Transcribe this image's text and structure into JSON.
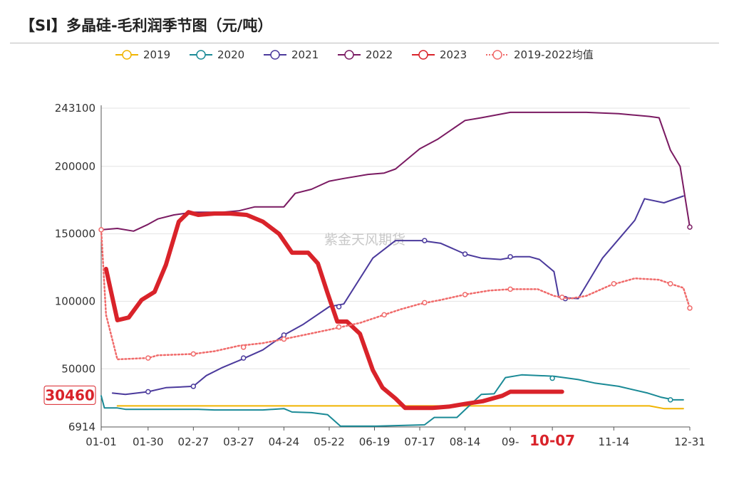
{
  "header": {
    "title": "【SI】多晶硅-毛利润季节图（元/吨）"
  },
  "watermark": "紫金天风期货",
  "chart_data": {
    "type": "line",
    "title": "【SI】多晶硅-毛利润季节图（元/吨）",
    "ylim": [
      6914,
      243100
    ],
    "y_ticks": [
      6914,
      50000,
      100000,
      150000,
      200000,
      243100
    ],
    "y_tick_labels": [
      "6914",
      "50000",
      "100000",
      "150000",
      "200000",
      "243100"
    ],
    "x_ticks": [
      "01-01",
      "01-30",
      "02-27",
      "03-27",
      "04-24",
      "05-22",
      "06-19",
      "07-17",
      "08-14",
      "09-",
      "10-07",
      "11-14",
      "12-31"
    ],
    "x_tick_days": [
      0,
      29,
      57,
      85,
      113,
      141,
      169,
      197,
      225,
      253,
      279,
      317,
      364
    ],
    "highlight_x_label": "10-07",
    "highlight_y_label": "30460",
    "highlight_y_value": 30460,
    "grid": true,
    "legend_position": "top",
    "series": [
      {
        "name": "2019",
        "color": "#f0b400",
        "style": "solid",
        "width": 2,
        "points": [
          [
            10,
            22500
          ],
          [
            60,
            22500
          ],
          [
            120,
            22500
          ],
          [
            200,
            22500
          ],
          [
            260,
            22500
          ],
          [
            320,
            22500
          ],
          [
            339,
            22500
          ],
          [
            348,
            20500
          ],
          [
            360,
            20500
          ]
        ],
        "markers": []
      },
      {
        "name": "2020",
        "color": "#1a8a96",
        "style": "solid",
        "width": 2,
        "points": [
          [
            0,
            30000
          ],
          [
            2,
            21000
          ],
          [
            10,
            21000
          ],
          [
            15,
            20000
          ],
          [
            30,
            20000
          ],
          [
            60,
            20000
          ],
          [
            70,
            19500
          ],
          [
            100,
            19500
          ],
          [
            113,
            20500
          ],
          [
            118,
            18000
          ],
          [
            130,
            17500
          ],
          [
            140,
            16000
          ],
          [
            148,
            7500
          ],
          [
            170,
            7500
          ],
          [
            200,
            8500
          ],
          [
            206,
            14000
          ],
          [
            220,
            14000
          ],
          [
            235,
            31000
          ],
          [
            243,
            31500
          ],
          [
            250,
            43500
          ],
          [
            260,
            45500
          ],
          [
            280,
            44500
          ],
          [
            295,
            42000
          ],
          [
            305,
            39500
          ],
          [
            320,
            37000
          ],
          [
            338,
            32000
          ],
          [
            346,
            29000
          ],
          [
            354,
            27000
          ],
          [
            360,
            27000
          ]
        ],
        "markers": [
          [
            279,
            43000
          ],
          [
            352,
            27000
          ]
        ]
      },
      {
        "name": "2021",
        "color": "#4b3a9c",
        "style": "solid",
        "width": 2,
        "points": [
          [
            7,
            32000
          ],
          [
            15,
            31000
          ],
          [
            29,
            33000
          ],
          [
            40,
            36000
          ],
          [
            57,
            37000
          ],
          [
            65,
            45000
          ],
          [
            75,
            51000
          ],
          [
            85,
            56000
          ],
          [
            100,
            64000
          ],
          [
            113,
            75000
          ],
          [
            125,
            83000
          ],
          [
            141,
            96000
          ],
          [
            150,
            98000
          ],
          [
            168,
            132000
          ],
          [
            182,
            145000
          ],
          [
            198,
            145000
          ],
          [
            210,
            143000
          ],
          [
            225,
            135000
          ],
          [
            235,
            132000
          ],
          [
            247,
            131000
          ],
          [
            256,
            133000
          ],
          [
            265,
            133000
          ],
          [
            271,
            131000
          ],
          [
            280,
            122000
          ],
          [
            283,
            103000
          ],
          [
            295,
            102000
          ],
          [
            302,
            116000
          ],
          [
            310,
            132000
          ],
          [
            330,
            160000
          ],
          [
            336,
            176000
          ],
          [
            348,
            173000
          ],
          [
            360,
            178000
          ]
        ],
        "markers": [
          [
            29,
            33000
          ],
          [
            57,
            37000
          ],
          [
            88,
            58000
          ],
          [
            113,
            75000
          ],
          [
            147,
            96000
          ],
          [
            200,
            145000
          ],
          [
            225,
            135000
          ],
          [
            253,
            133000
          ],
          [
            287,
            102000
          ]
        ]
      },
      {
        "name": "2022",
        "color": "#7a1a62",
        "style": "solid",
        "width": 2,
        "points": [
          [
            0,
            153000
          ],
          [
            10,
            154000
          ],
          [
            20,
            152000
          ],
          [
            29,
            157000
          ],
          [
            35,
            161000
          ],
          [
            45,
            164000
          ],
          [
            57,
            166000
          ],
          [
            65,
            166000
          ],
          [
            75,
            166000
          ],
          [
            85,
            167000
          ],
          [
            95,
            170000
          ],
          [
            113,
            170000
          ],
          [
            120,
            180000
          ],
          [
            130,
            183000
          ],
          [
            141,
            189000
          ],
          [
            150,
            191000
          ],
          [
            165,
            194000
          ],
          [
            175,
            195000
          ],
          [
            182,
            198000
          ],
          [
            197,
            213000
          ],
          [
            208,
            220000
          ],
          [
            225,
            234000
          ],
          [
            235,
            236000
          ],
          [
            253,
            240000
          ],
          [
            300,
            240000
          ],
          [
            320,
            239000
          ],
          [
            339,
            237000
          ],
          [
            345,
            236000
          ],
          [
            352,
            212000
          ],
          [
            358,
            200000
          ],
          [
            364,
            155000
          ]
        ],
        "markers": [
          [
            364,
            155000
          ]
        ]
      },
      {
        "name": "2023",
        "color": "#d9232a",
        "style": "solid",
        "width": 6,
        "points": [
          [
            3,
            124000
          ],
          [
            10,
            86000
          ],
          [
            17,
            88000
          ],
          [
            25,
            101000
          ],
          [
            33,
            107000
          ],
          [
            40,
            127000
          ],
          [
            48,
            159000
          ],
          [
            54,
            166000
          ],
          [
            60,
            164000
          ],
          [
            70,
            165000
          ],
          [
            80,
            165000
          ],
          [
            90,
            164000
          ],
          [
            100,
            159000
          ],
          [
            110,
            150000
          ],
          [
            118,
            136000
          ],
          [
            128,
            136000
          ],
          [
            134,
            128000
          ],
          [
            140,
            106000
          ],
          [
            146,
            85000
          ],
          [
            152,
            85000
          ],
          [
            160,
            76000
          ],
          [
            168,
            49000
          ],
          [
            174,
            36000
          ],
          [
            182,
            28000
          ],
          [
            188,
            21000
          ],
          [
            205,
            21000
          ],
          [
            215,
            22000
          ],
          [
            225,
            24000
          ],
          [
            236,
            26000
          ],
          [
            248,
            30000
          ],
          [
            253,
            33000
          ],
          [
            260,
            33000
          ],
          [
            270,
            33000
          ],
          [
            285,
            33000
          ]
        ],
        "markers": []
      },
      {
        "name": "2019-2022均值",
        "color": "#f06a6a",
        "style": "dotted",
        "width": 2.5,
        "points": [
          [
            0,
            153000
          ],
          [
            3,
            90000
          ],
          [
            10,
            57000
          ],
          [
            29,
            58000
          ],
          [
            35,
            60000
          ],
          [
            57,
            61000
          ],
          [
            70,
            63000
          ],
          [
            85,
            67000
          ],
          [
            100,
            69000
          ],
          [
            113,
            72000
          ],
          [
            125,
            75000
          ],
          [
            141,
            79000
          ],
          [
            160,
            84000
          ],
          [
            170,
            88000
          ],
          [
            185,
            94000
          ],
          [
            197,
            98000
          ],
          [
            210,
            101000
          ],
          [
            225,
            105000
          ],
          [
            240,
            108000
          ],
          [
            253,
            109000
          ],
          [
            270,
            109000
          ],
          [
            280,
            104000
          ],
          [
            290,
            102000
          ],
          [
            300,
            104000
          ],
          [
            315,
            112000
          ],
          [
            330,
            117000
          ],
          [
            345,
            116000
          ],
          [
            352,
            113000
          ],
          [
            360,
            110000
          ],
          [
            364,
            95000
          ]
        ],
        "markers": [
          [
            0,
            153000
          ],
          [
            29,
            58000
          ],
          [
            57,
            61000
          ],
          [
            88,
            66000
          ],
          [
            113,
            72000
          ],
          [
            147,
            81000
          ],
          [
            175,
            90000
          ],
          [
            200,
            99000
          ],
          [
            225,
            105000
          ],
          [
            253,
            109000
          ],
          [
            285,
            103000
          ],
          [
            317,
            113000
          ],
          [
            352,
            113000
          ],
          [
            364,
            95000
          ]
        ]
      }
    ]
  }
}
